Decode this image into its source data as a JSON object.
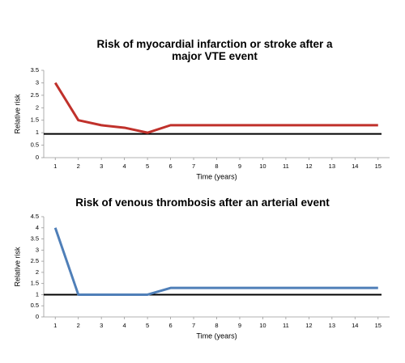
{
  "chart_data": [
    {
      "type": "line",
      "title": "Risk of myocardial infarction or stroke after a major VTE event",
      "x_label": "Time (years)",
      "y_label": "Relative risk",
      "x": [
        1,
        2,
        3,
        4,
        5,
        6,
        7,
        8,
        9,
        10,
        11,
        12,
        13,
        14,
        15
      ],
      "xlim": [
        0.5,
        15.5
      ],
      "xticks": [
        1,
        2,
        3,
        4,
        5,
        6,
        7,
        8,
        9,
        10,
        11,
        12,
        13,
        14,
        15
      ],
      "ylim": [
        0,
        3.5
      ],
      "yticks": [
        0,
        0.5,
        1,
        1.5,
        2,
        2.5,
        3,
        3.5
      ],
      "reference_line": 0.95,
      "reference_color": "#000000",
      "series": [
        {
          "color": "#c0312b",
          "values": [
            3,
            1.5,
            1.3,
            1.2,
            1,
            1.3,
            1.3,
            1.3,
            1.3,
            1.3,
            1.3,
            1.3,
            1.3,
            1.3,
            1.3
          ]
        }
      ]
    },
    {
      "type": "line",
      "title": "Risk of venous thrombosis after an arterial event",
      "x_label": "Time (years)",
      "y_label": "Relative risk",
      "x": [
        1,
        2,
        3,
        4,
        5,
        6,
        7,
        8,
        9,
        10,
        11,
        12,
        13,
        14,
        15
      ],
      "xlim": [
        0.5,
        15.5
      ],
      "xticks": [
        1,
        2,
        3,
        4,
        5,
        6,
        7,
        8,
        9,
        10,
        11,
        12,
        13,
        14,
        15
      ],
      "ylim": [
        0,
        4.5
      ],
      "yticks": [
        0,
        0.5,
        1,
        1.5,
        2,
        2.5,
        3,
        3.5,
        4,
        4.5
      ],
      "reference_line": 1,
      "reference_color": "#000000",
      "series": [
        {
          "color": "#4f7fb8",
          "values": [
            4,
            1,
            1,
            1,
            1,
            1.3,
            1.3,
            1.3,
            1.3,
            1.3,
            1.3,
            1.3,
            1.3,
            1.3,
            1.3
          ]
        }
      ]
    }
  ]
}
